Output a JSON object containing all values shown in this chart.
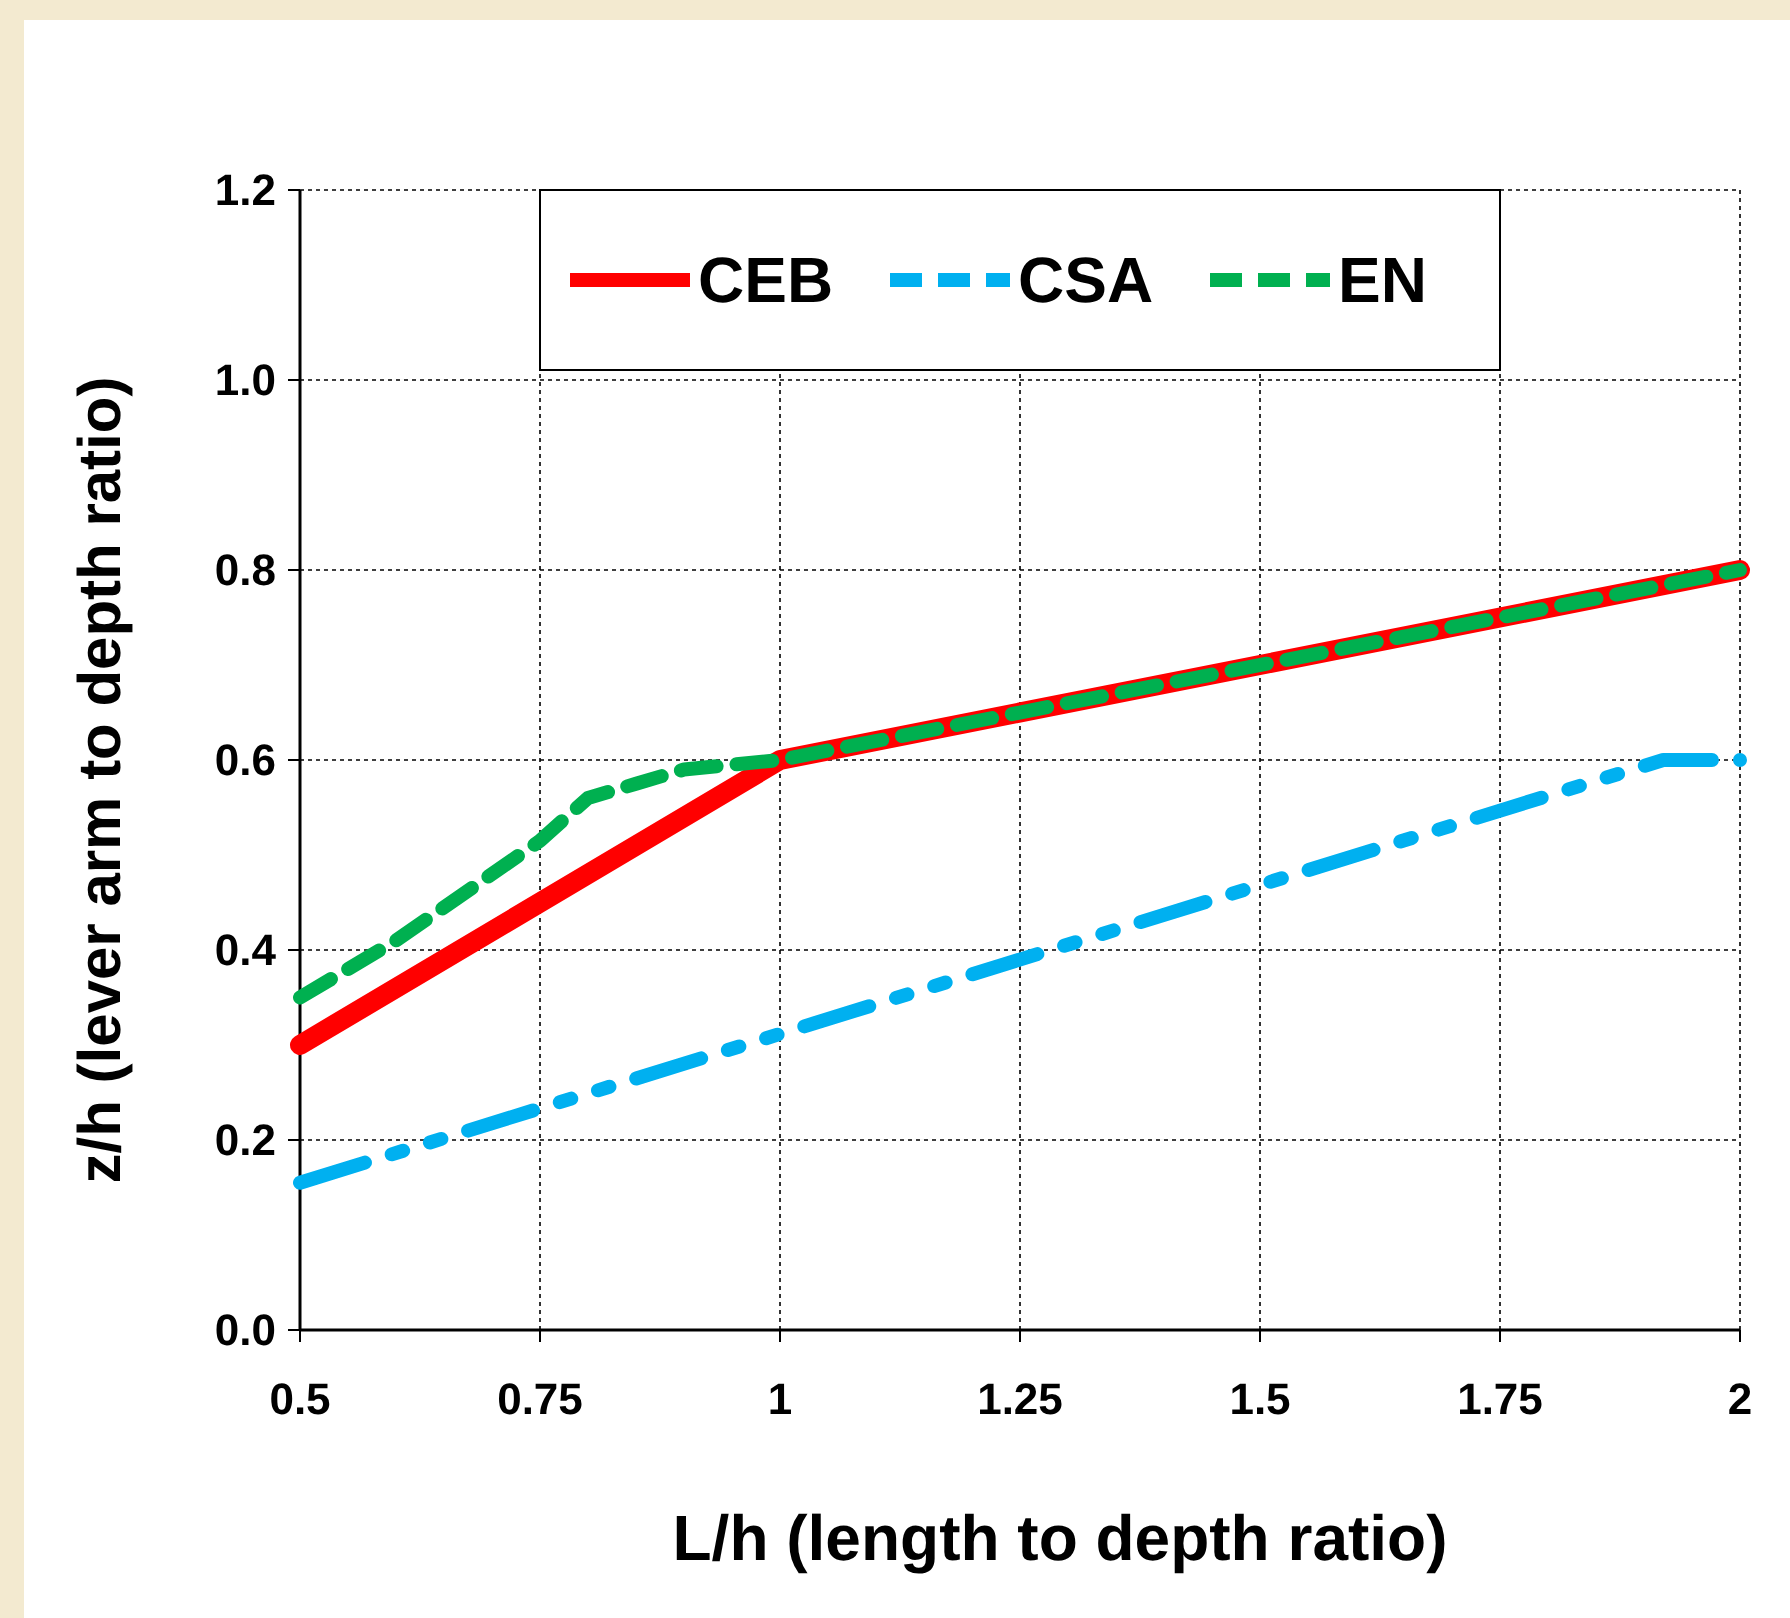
{
  "chart_data": {
    "type": "line",
    "xlabel": "L/h (length to depth ratio)",
    "ylabel": "z/h (lever arm to depth ratio)",
    "xlim": [
      0.5,
      2
    ],
    "xticks": [
      0.5,
      0.75,
      1,
      1.25,
      1.5,
      1.75,
      2
    ],
    "ylim": [
      0,
      1.2
    ],
    "yticks": [
      {
        "value": 0,
        "label": "0.0"
      },
      {
        "value": 0.2,
        "label": "0.2"
      },
      {
        "value": 0.4,
        "label": "0.4"
      },
      {
        "value": 0.6,
        "label": "0.6"
      },
      {
        "value": 0.8,
        "label": "0.8"
      },
      {
        "value": 1,
        "label": "1.0"
      },
      {
        "value": 1.2,
        "label": "1.2"
      }
    ],
    "grid": true,
    "legend": "top",
    "marker": "none",
    "series": [
      {
        "name": "CEB",
        "color": "#ff0000",
        "line_style": "solid",
        "x": [
          0.5,
          1,
          2
        ],
        "values": [
          0.3,
          0.6,
          0.8
        ]
      },
      {
        "name": "CSA",
        "color": "#00b0f0",
        "line_style": "dashed",
        "x": [
          0.5,
          1.92,
          2
        ],
        "values": [
          0.155,
          0.6,
          0.6
        ]
      },
      {
        "name": "EN",
        "color": "#00b050",
        "line_style": "dashed",
        "x": [
          0.5,
          0.6,
          0.75,
          0.8,
          0.85,
          0.9,
          1,
          2
        ],
        "values": [
          0.35,
          0.41,
          0.515,
          0.56,
          0.575,
          0.59,
          0.6,
          0.8
        ]
      }
    ]
  }
}
